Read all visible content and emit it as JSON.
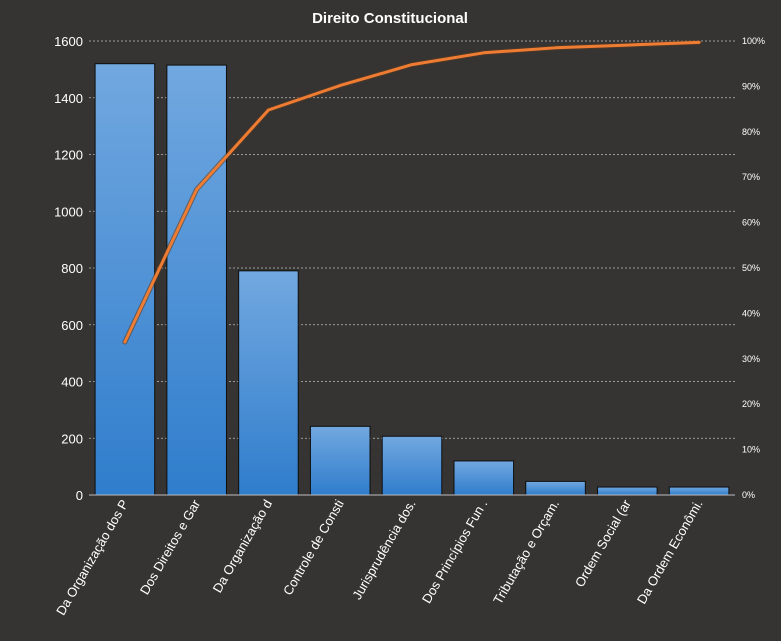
{
  "chart_data": {
    "type": "bar",
    "title": "Direito  Constitucional",
    "xlabel": "",
    "ylabel": "",
    "categories": [
      "Da Organização dos P",
      "Dos Direitos e Gar",
      "Da Organização d",
      "Controle de Consti",
      "Jurisprudência dos.",
      "Dos Princípios Fun .",
      "Tributação e Orçam.",
      "Ordem Social (ar",
      "Da Ordem Econômi."
    ],
    "values": [
      1520,
      1515,
      790,
      242,
      207,
      120,
      48,
      28,
      28
    ],
    "cumulative_percent": [
      33.7,
      67.3,
      84.8,
      90.2,
      94.8,
      97.4,
      98.5,
      99.1,
      99.7
    ],
    "ylim": [
      0,
      1600
    ],
    "yticks": [
      "0",
      "200",
      "400",
      "600",
      "800",
      "1000",
      "1200",
      "1400",
      "1600"
    ],
    "y2lim": [
      0,
      100
    ],
    "y2ticks": [
      "0%",
      "10%",
      "20%",
      "30%",
      "40%",
      "50%",
      "60%",
      "70%",
      "80%",
      "90%",
      "100%"
    ],
    "grid": true,
    "legend": "none",
    "colors": {
      "background": "#363432",
      "bar_top": "#72a8e0",
      "bar_bottom": "#2f7dcc",
      "bar_stroke": "#0e0e0e",
      "line": "#ef7c33",
      "grid": "#bdbdbd",
      "text": "#ffffff"
    }
  }
}
